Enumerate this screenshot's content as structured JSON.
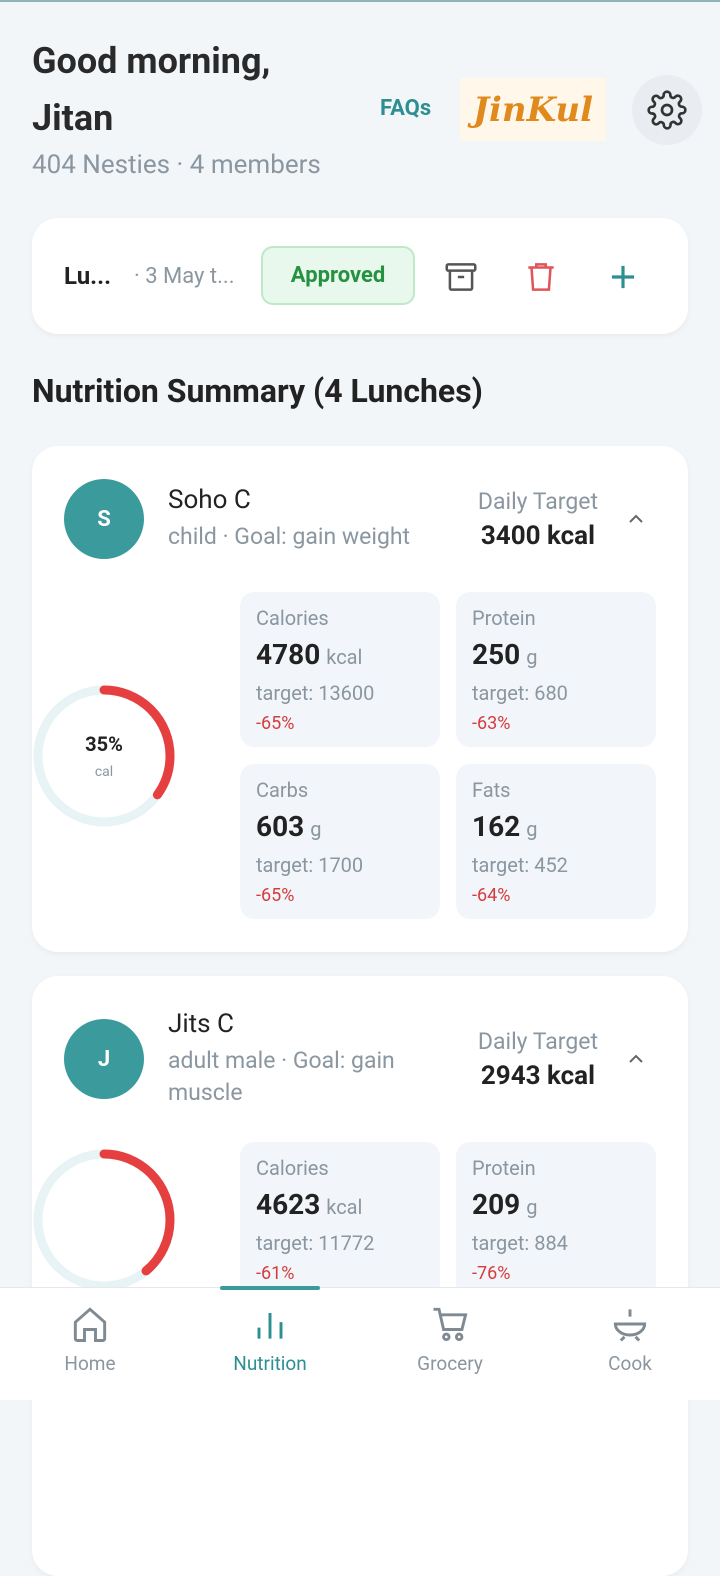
{
  "header": {
    "greeting": "Good morning,",
    "name": "Jitan",
    "subtitle": "404 Nesties · 4 members",
    "faqs": "FAQs",
    "logo": "JinKul"
  },
  "plan_bar": {
    "title": "Lu...",
    "date": "· 3 May t...",
    "status": "Approved"
  },
  "section_title": "Nutrition Summary (4 Lunches)",
  "members": [
    {
      "initial": "S",
      "name": "Soho C",
      "description": "child · Goal: gain weight",
      "target_label": "Daily Target",
      "target": "3400 kcal",
      "ring": {
        "value": 35,
        "label": "35%"
      },
      "ring_unit": "cal",
      "stats": [
        {
          "label": "Calories",
          "value": "4780",
          "unit": "kcal",
          "target": "target: 13600",
          "delta": "-65%"
        },
        {
          "label": "Protein",
          "value": "250",
          "unit": "g",
          "target": "target: 680",
          "delta": "-63%"
        },
        {
          "label": "Carbs",
          "value": "603",
          "unit": "g",
          "target": "target: 1700",
          "delta": "-65%"
        },
        {
          "label": "Fats",
          "value": "162",
          "unit": "g",
          "target": "target: 452",
          "delta": "-64%"
        }
      ]
    },
    {
      "initial": "J",
      "name": "Jits C",
      "description": "adult male · Goal: gain muscle",
      "target_label": "Daily Target",
      "target": "2943 kcal",
      "ring": {
        "value": 39
      },
      "stats": [
        {
          "label": "Calories",
          "value": "4623",
          "unit": "kcal",
          "target": "target: 11772",
          "delta": "-61%"
        },
        {
          "label": "Protein",
          "value": "209",
          "unit": "g",
          "target": "target: 884",
          "delta": "-76%"
        }
      ]
    }
  ],
  "nav": [
    {
      "label": "Home"
    },
    {
      "label": "Nutrition",
      "active": true
    },
    {
      "label": "Grocery"
    },
    {
      "label": "Cook"
    }
  ]
}
